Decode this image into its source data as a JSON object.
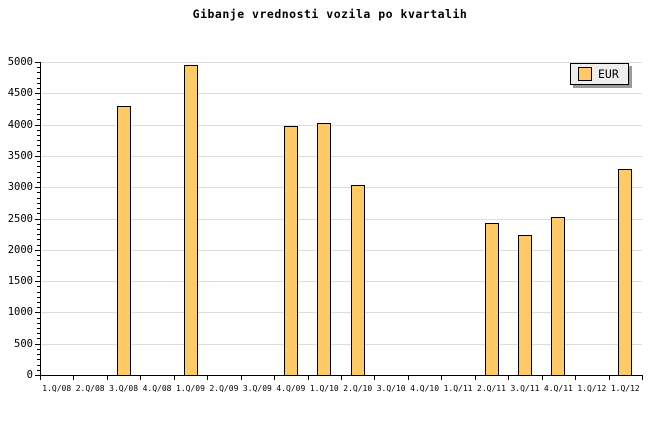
{
  "title": "Gibanje vrednosti vozila po kvartalih",
  "legend": {
    "label": "EUR"
  },
  "colors": {
    "background": "#FFFFFF",
    "bar_fill": "#FFC966",
    "bar_border": "#000000",
    "grid": "#DDDDDD",
    "axis": "#000000",
    "text": "#000000",
    "legend_bg": "#EEEEEE",
    "legend_border": "#000000",
    "legend_shadow": "#999999"
  },
  "chart_data": {
    "type": "bar",
    "title": "Gibanje vrednosti vozila po kvartalih",
    "categories": [
      "1.Q/08",
      "2.Q/08",
      "3.Q/08",
      "4.Q/08",
      "1.Q/09",
      "2.Q/09",
      "3.Q/09",
      "4.Q/09",
      "1.Q/10",
      "2.Q/10",
      "3.Q/10",
      "4.Q/10",
      "1.Q/11",
      "2.Q/11",
      "3.Q/11",
      "4.Q/11",
      "1.Q/12",
      "1.Q/12"
    ],
    "values": [
      0,
      0,
      4300,
      0,
      4950,
      0,
      0,
      3970,
      4030,
      3040,
      0,
      0,
      0,
      2430,
      2240,
      2520,
      0,
      3290
    ],
    "series": [
      {
        "name": "EUR"
      }
    ],
    "xlabel": "",
    "ylabel": "",
    "ylim": [
      0,
      5000
    ],
    "ytick_step": 500,
    "ytick_labels": [
      "0",
      "500",
      "1000",
      "1500",
      "2000",
      "2500",
      "3000",
      "3500",
      "4000",
      "4500",
      "5000"
    ],
    "minor_ticks_per_interval": 5,
    "grid": "horizontal",
    "legend_position": "top-right"
  }
}
